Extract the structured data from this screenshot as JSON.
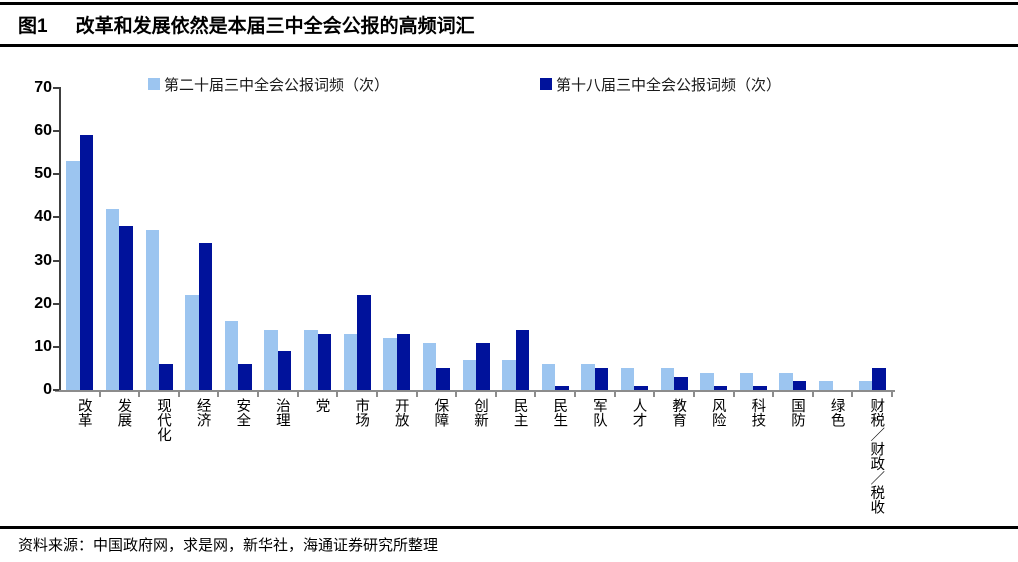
{
  "header": {
    "figure_label": "图1",
    "title": "改革和发展依然是本届三中全会公报的高频词汇"
  },
  "footer": {
    "source": "资料来源：中国政府网，求是网，新华社，海通证券研究所整理"
  },
  "colors": {
    "series_light": "#9CC5F0",
    "series_dark": "#00129B",
    "y_axis": "#404040",
    "x_axis": "#8c8c8c"
  },
  "chart_data": {
    "type": "bar",
    "title": "改革和发展依然是本届三中全会公报的高频词汇",
    "categories": [
      "改革",
      "发展",
      "现代化",
      "经济",
      "安全",
      "治理",
      "党",
      "市场",
      "开放",
      "保障",
      "创新",
      "民主",
      "民生",
      "军队",
      "人才",
      "教育",
      "风险",
      "科技",
      "国防",
      "绿色",
      "财税／财政／税收"
    ],
    "series": [
      {
        "name": "第二十届三中全会公报词频（次）",
        "color": "#9CC5F0",
        "values": [
          53,
          42,
          37,
          22,
          16,
          14,
          14,
          13,
          12,
          11,
          7,
          7,
          6,
          6,
          5,
          5,
          4,
          4,
          4,
          2,
          2
        ]
      },
      {
        "name": "第十八届三中全会公报词频（次）",
        "color": "#00129B",
        "values": [
          59,
          38,
          6,
          34,
          6,
          9,
          13,
          22,
          13,
          5,
          11,
          14,
          1,
          5,
          1,
          3,
          1,
          1,
          2,
          0,
          5
        ]
      }
    ],
    "xlabel": "",
    "ylabel": "",
    "ylim": [
      0,
      70
    ],
    "ytick_interval": 10,
    "grid": false,
    "legend_position": "top"
  }
}
